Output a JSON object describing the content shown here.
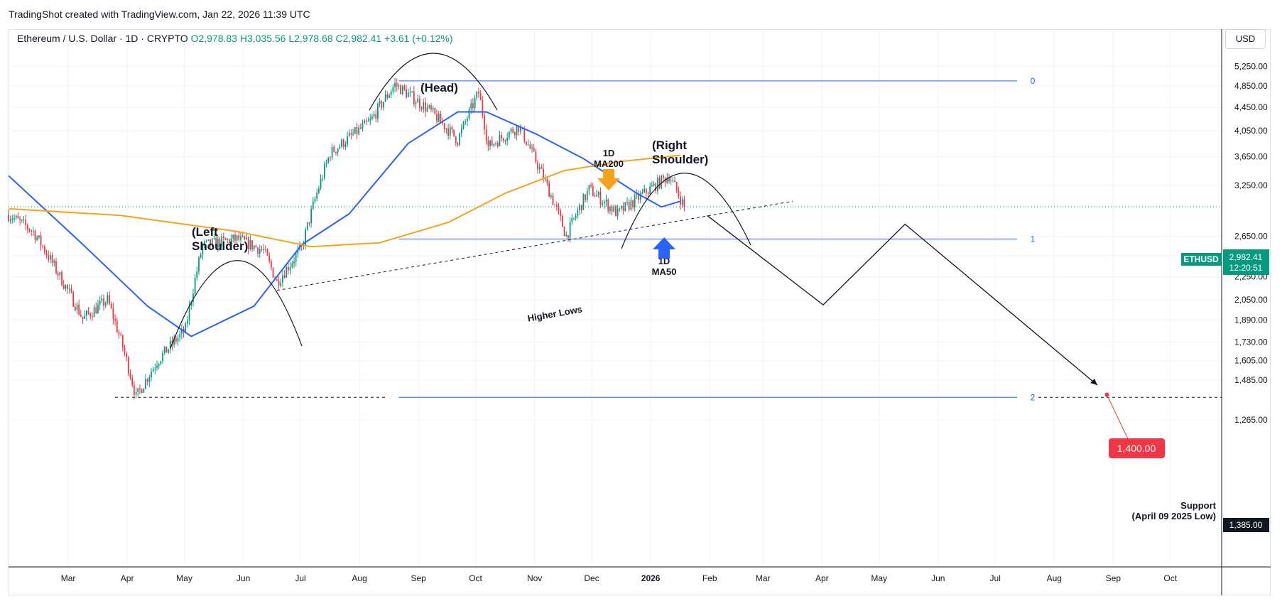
{
  "header": {
    "caption": "TradingShot created with TradingView.com, Jan 22, 2026 11:39 UTC"
  },
  "symbol": {
    "name": "Ethereum / U.S. Dollar · 1D · CRYPTO",
    "open": "O2,978.83",
    "high": "H3,035.56",
    "low": "L2,978.68",
    "close": "C2,982.41",
    "change": "+3.61 (+0.12%)"
  },
  "currency": "USD",
  "colors": {
    "up": "#089981",
    "down": "#f23645",
    "ma50": "#2962ff",
    "ma200": "#f7a21b",
    "fib": "#2962ff",
    "target": "#f23645"
  },
  "chart_data": {
    "type": "candlestick",
    "x_labels": [
      "Mar",
      "Apr",
      "May",
      "Jun",
      "Jul",
      "Aug",
      "Sep",
      "Oct",
      "Nov",
      "Dec",
      "2026",
      "Feb",
      "Mar",
      "Apr",
      "May",
      "Jun",
      "Jul",
      "Aug",
      "Sep",
      "Oct"
    ],
    "x_range": [
      "2025-02-01",
      "2026-10-31"
    ],
    "y_scale": "log",
    "y_ticks": [
      "5,250.00",
      "4,850.00",
      "4,450.00",
      "4,050.00",
      "3,650.00",
      "3,250.00",
      "2,650.00",
      "2,450.00",
      "2,250.00",
      "2,050.00",
      "1,890.00",
      "1,730.00",
      "1,605.00",
      "1,485.00",
      "1,265.00"
    ],
    "y_tick_values": [
      5250,
      4850,
      4450,
      4050,
      3650,
      3250,
      2650,
      2450,
      2250,
      2050,
      1890,
      1730,
      1605,
      1485,
      1265
    ],
    "ylim": [
      1210,
      5600
    ],
    "price_path": [
      [
        "2025-02-01",
        2890
      ],
      [
        "2025-02-14",
        2700
      ],
      [
        "2025-02-28",
        2250
      ],
      [
        "2025-03-12",
        1900
      ],
      [
        "2025-03-25",
        2050
      ],
      [
        "2025-04-09",
        1385
      ],
      [
        "2025-04-20",
        1600
      ],
      [
        "2025-05-05",
        1820
      ],
      [
        "2025-05-14",
        2550
      ],
      [
        "2025-06-01",
        2620
      ],
      [
        "2025-06-15",
        2500
      ],
      [
        "2025-06-22",
        2200
      ],
      [
        "2025-07-05",
        2520
      ],
      [
        "2025-07-20",
        3700
      ],
      [
        "2025-08-10",
        4200
      ],
      [
        "2025-08-23",
        4880
      ],
      [
        "2025-09-10",
        4400
      ],
      [
        "2025-09-25",
        3900
      ],
      [
        "2025-10-06",
        4720
      ],
      [
        "2025-10-11",
        3800
      ],
      [
        "2025-10-27",
        4120
      ],
      [
        "2025-11-21",
        2650
      ],
      [
        "2025-12-03",
        3200
      ],
      [
        "2025-12-18",
        2900
      ],
      [
        "2026-01-14",
        3380
      ],
      [
        "2026-01-22",
        2982.41
      ]
    ],
    "series": [
      {
        "name": "1D MA50",
        "points": [
          [
            "2025-02-01",
            3380
          ],
          [
            "2025-03-10",
            2600
          ],
          [
            "2025-04-15",
            2000
          ],
          [
            "2025-05-08",
            1770
          ],
          [
            "2025-06-10",
            2000
          ],
          [
            "2025-07-05",
            2560
          ],
          [
            "2025-07-30",
            2900
          ],
          [
            "2025-08-30",
            3850
          ],
          [
            "2025-09-25",
            4370
          ],
          [
            "2025-10-10",
            4370
          ],
          [
            "2025-11-05",
            4000
          ],
          [
            "2025-11-30",
            3620
          ],
          [
            "2025-12-28",
            3150
          ],
          [
            "2026-01-10",
            2980
          ],
          [
            "2026-01-20",
            3050
          ]
        ]
      },
      {
        "name": "1D MA200",
        "points": [
          [
            "2025-02-01",
            2960
          ],
          [
            "2025-04-01",
            2880
          ],
          [
            "2025-06-01",
            2700
          ],
          [
            "2025-07-10",
            2540
          ],
          [
            "2025-08-15",
            2580
          ],
          [
            "2025-09-20",
            2800
          ],
          [
            "2025-10-20",
            3150
          ],
          [
            "2025-11-20",
            3450
          ],
          [
            "2025-12-20",
            3580
          ],
          [
            "2026-01-20",
            3670
          ]
        ]
      }
    ],
    "fib_levels": [
      {
        "label": "0",
        "value": 4950
      },
      {
        "label": "1",
        "value": 2620
      },
      {
        "label": "2",
        "value": 1385
      }
    ],
    "projection_path": [
      [
        "2026-02-03",
        2880
      ],
      [
        "2026-04-05",
        2010
      ],
      [
        "2026-05-18",
        2780
      ],
      [
        "2026-08-27",
        1455
      ]
    ],
    "current_price": {
      "label": "ETHUSD",
      "value": "2,982.41",
      "countdown": "12:20:51",
      "raw": 2982.41
    },
    "support": {
      "value": "1,385.00",
      "raw": 1385,
      "label_line1": "Support",
      "label_line2": "(April 09 2025 Low)"
    },
    "target": {
      "value": "1,400.00",
      "raw": 1400,
      "date": "2026-09-01"
    },
    "annotations": {
      "left_shoulder": [
        "(Left",
        "Shoulder)"
      ],
      "head": "(Head)",
      "right_shoulder": [
        "(Right",
        "Shoulder)"
      ],
      "ma200_label": [
        "1D",
        "MA200"
      ],
      "ma50_label": [
        "1D",
        "MA50"
      ],
      "higher_lows": "Higher Lows"
    }
  }
}
